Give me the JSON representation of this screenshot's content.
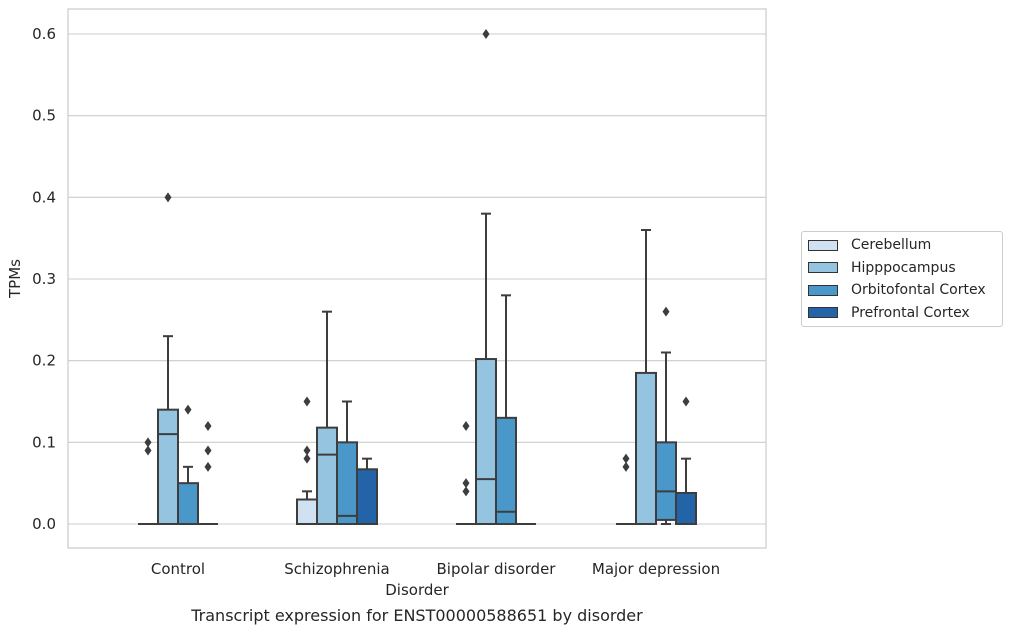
{
  "caption": "Transcript expression for ENST00000588651 by disorder",
  "chart_data": {
    "type": "box",
    "xlabel": "Disorder",
    "ylabel": "TPMs",
    "ylim": [
      -0.03,
      0.63
    ],
    "yticks": [
      "0.0",
      "0.1",
      "0.2",
      "0.3",
      "0.4",
      "0.5",
      "0.6"
    ],
    "grid": true,
    "legend_placement": "right",
    "categories": [
      "Control",
      "Schizophrenia",
      "Bipolar disorder",
      "Major depression"
    ],
    "series": [
      {
        "name": "Cerebellum",
        "color": "#d0e1f2",
        "boxes": [
          {
            "q1": 0,
            "median": 0,
            "q3": 0,
            "whisker_low": 0,
            "whisker_high": 0,
            "outliers": [
              0.09,
              0.1
            ]
          },
          {
            "q1": 0,
            "median": 0,
            "q3": 0.03,
            "whisker_low": 0,
            "whisker_high": 0.04,
            "outliers": [
              0.08,
              0.09,
              0.15
            ]
          },
          {
            "q1": 0,
            "median": 0,
            "q3": 0,
            "whisker_low": 0,
            "whisker_high": 0,
            "outliers": [
              0.04,
              0.05,
              0.12
            ]
          },
          {
            "q1": 0,
            "median": 0,
            "q3": 0,
            "whisker_low": 0,
            "whisker_high": 0,
            "outliers": [
              0.07,
              0.08
            ]
          }
        ]
      },
      {
        "name": "Hipppocampus",
        "color": "#94c4df",
        "boxes": [
          {
            "q1": 0,
            "median": 0.11,
            "q3": 0.14,
            "whisker_low": 0,
            "whisker_high": 0.23,
            "outliers": [
              0.4
            ]
          },
          {
            "q1": 0,
            "median": 0.085,
            "q3": 0.118,
            "whisker_low": 0,
            "whisker_high": 0.26,
            "outliers": []
          },
          {
            "q1": 0,
            "median": 0.055,
            "q3": 0.202,
            "whisker_low": 0,
            "whisker_high": 0.38,
            "outliers": [
              0.6
            ]
          },
          {
            "q1": 0,
            "median": 0,
            "q3": 0.185,
            "whisker_low": 0,
            "whisker_high": 0.36,
            "outliers": []
          }
        ]
      },
      {
        "name": "Orbitofontal Cortex",
        "color": "#4a98c9",
        "boxes": [
          {
            "q1": 0,
            "median": 0,
            "q3": 0.05,
            "whisker_low": 0,
            "whisker_high": 0.07,
            "outliers": [
              0.14
            ]
          },
          {
            "q1": 0,
            "median": 0.01,
            "q3": 0.1,
            "whisker_low": 0,
            "whisker_high": 0.15,
            "outliers": []
          },
          {
            "q1": 0,
            "median": 0.015,
            "q3": 0.13,
            "whisker_low": 0,
            "whisker_high": 0.28,
            "outliers": []
          },
          {
            "q1": 0.005,
            "median": 0.04,
            "q3": 0.1,
            "whisker_low": 0,
            "whisker_high": 0.21,
            "outliers": [
              0.26
            ]
          }
        ]
      },
      {
        "name": "Prefrontal Cortex",
        "color": "#2363a8",
        "boxes": [
          {
            "q1": 0,
            "median": 0,
            "q3": 0,
            "whisker_low": 0,
            "whisker_high": 0,
            "outliers": [
              0.07,
              0.09,
              0.12
            ]
          },
          {
            "q1": 0,
            "median": 0,
            "q3": 0.067,
            "whisker_low": 0,
            "whisker_high": 0.08,
            "outliers": []
          },
          {
            "q1": 0,
            "median": 0,
            "q3": 0,
            "whisker_low": 0,
            "whisker_high": 0,
            "outliers": []
          },
          {
            "q1": 0,
            "median": 0,
            "q3": 0.038,
            "whisker_low": 0,
            "whisker_high": 0.08,
            "outliers": [
              0.15
            ]
          }
        ]
      }
    ]
  }
}
